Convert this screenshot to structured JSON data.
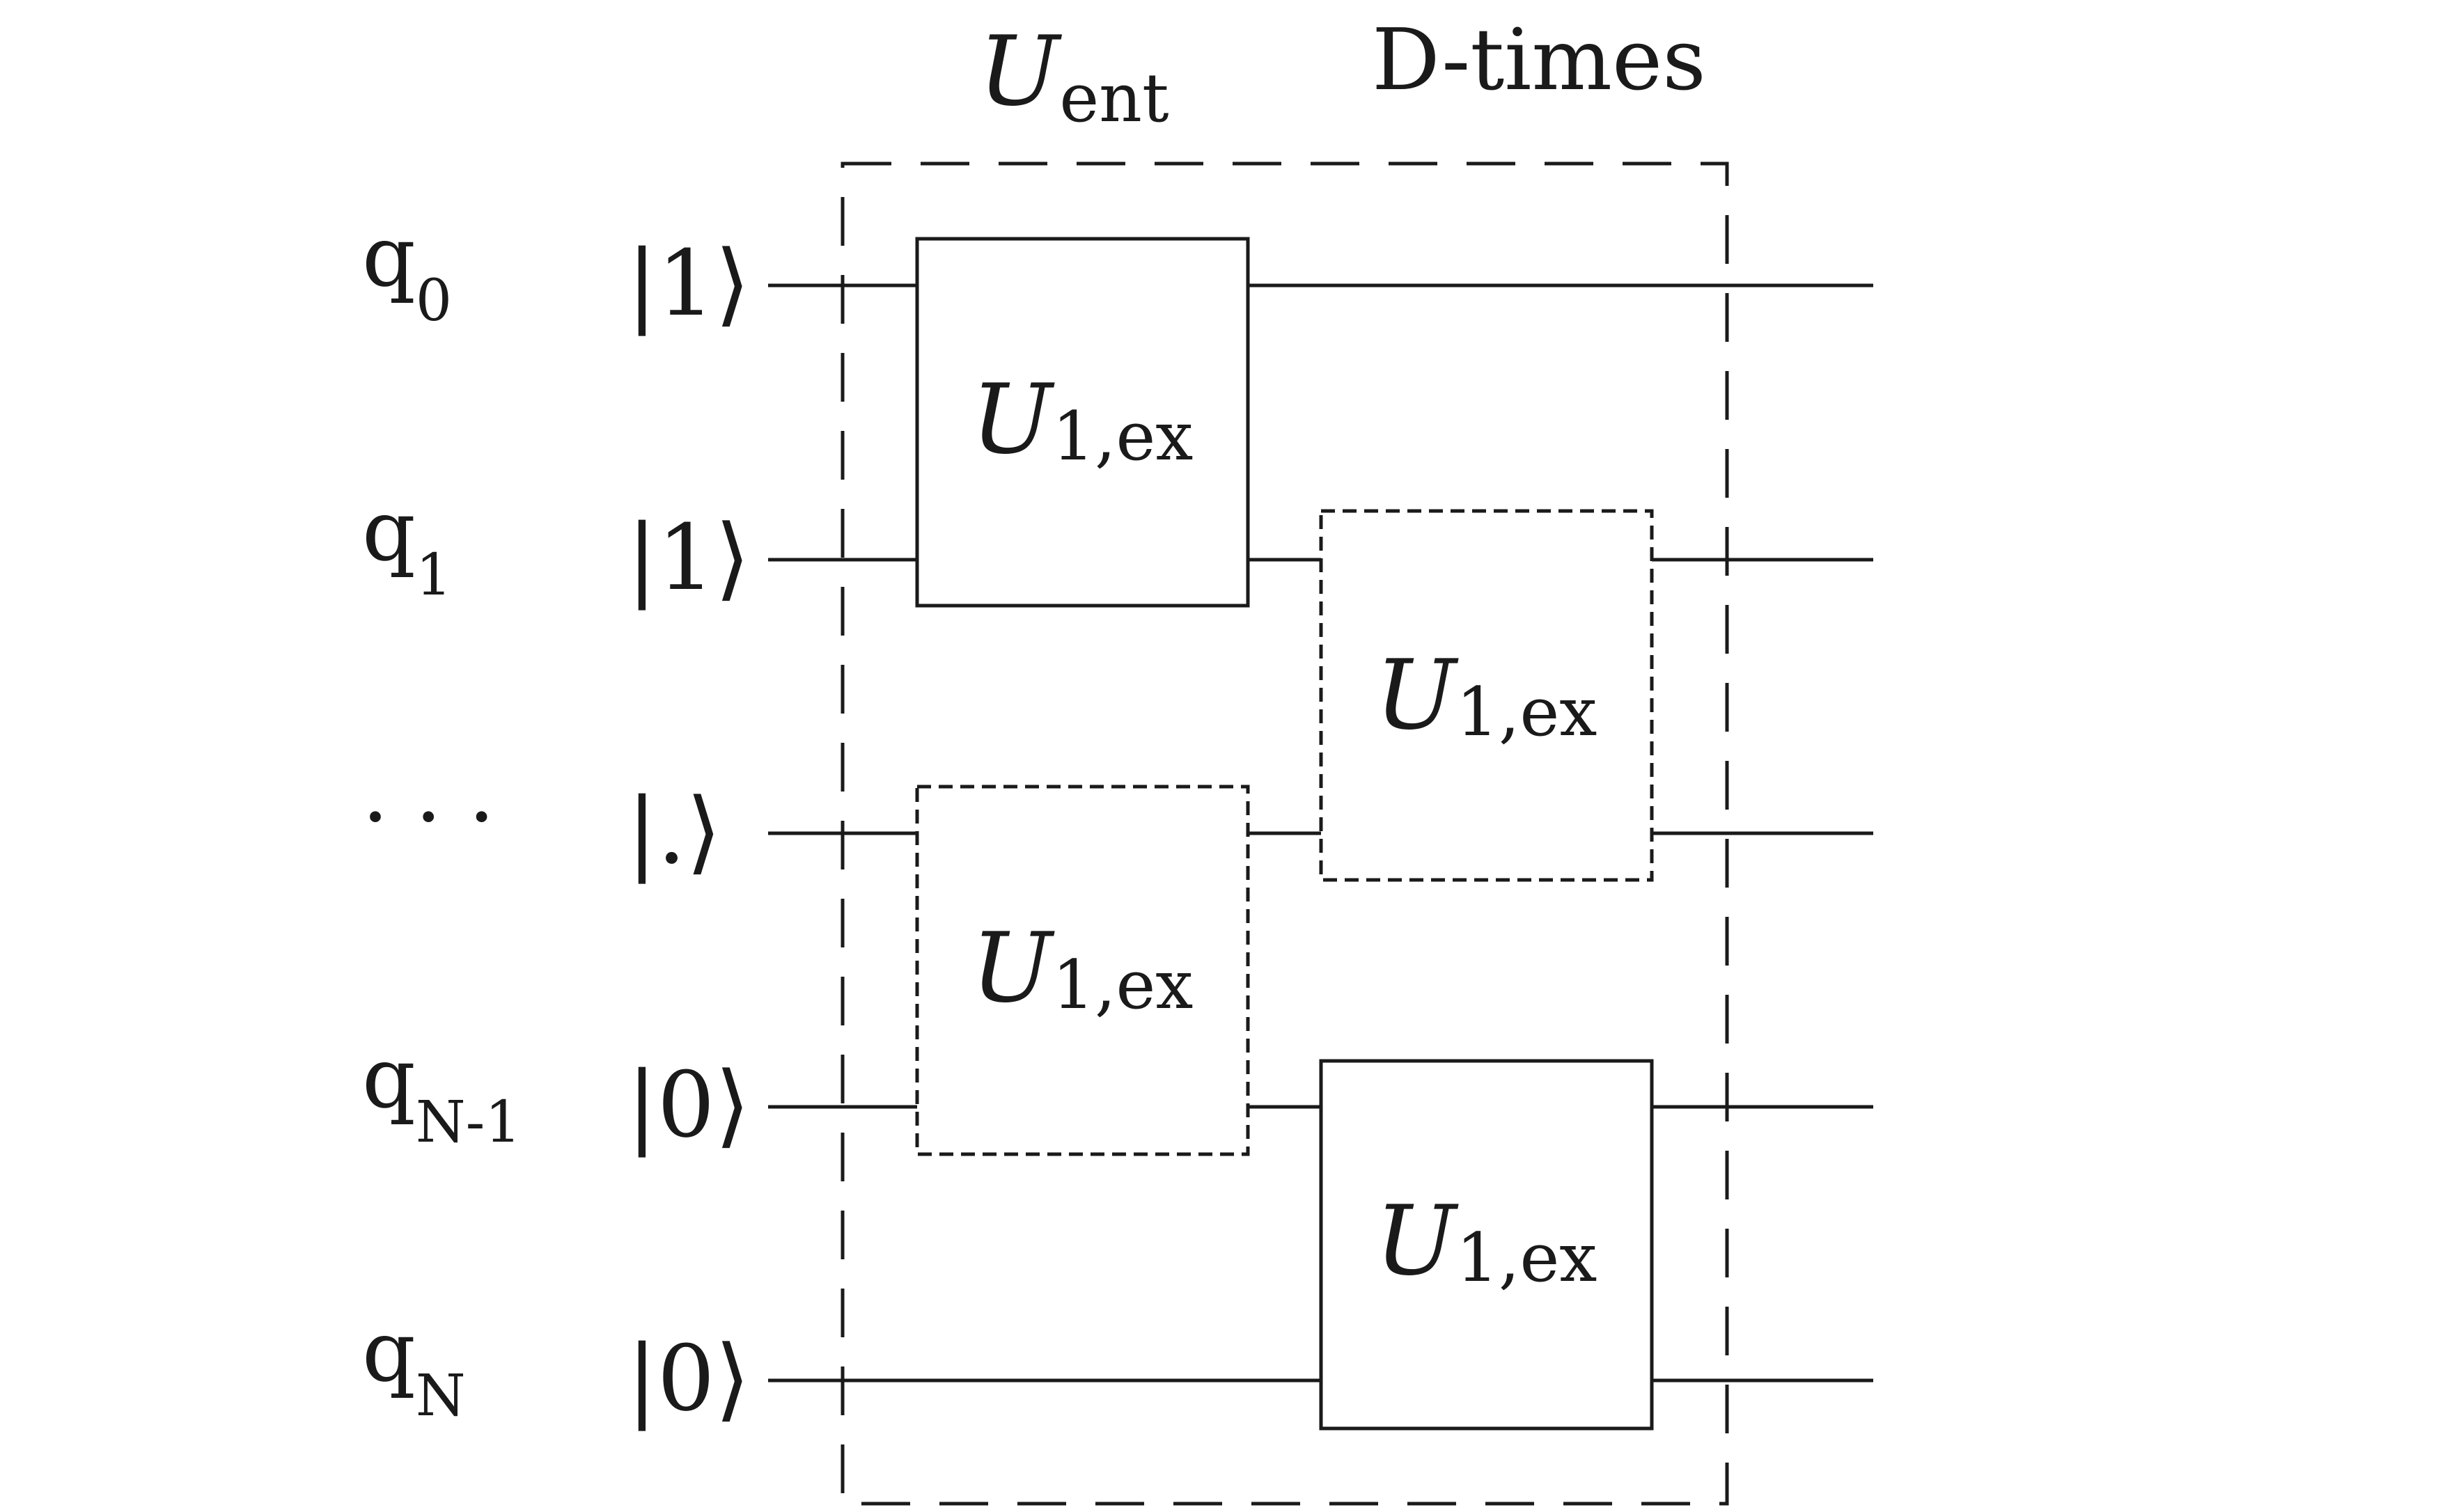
{
  "header": {
    "u_ent_main": "U",
    "u_ent_sub": "ent",
    "repeat_label": "D-times"
  },
  "qubits": [
    {
      "label": "q",
      "sub": "0",
      "ket": "|1⟩"
    },
    {
      "label": "q",
      "sub": "1",
      "ket": "|1⟩"
    },
    {
      "label": "· · ·",
      "sub": "",
      "ket": "|.⟩"
    },
    {
      "label": "q",
      "sub": "N-1",
      "ket": "|0⟩"
    },
    {
      "label": "q",
      "sub": "N",
      "ket": "|0⟩"
    }
  ],
  "gates": [
    {
      "main": "U",
      "sub": "1,ex",
      "style": "solid"
    },
    {
      "main": "U",
      "sub": "1,ex",
      "style": "dashed"
    },
    {
      "main": "U",
      "sub": "1,ex",
      "style": "dashed"
    },
    {
      "main": "U",
      "sub": "1,ex",
      "style": "solid"
    }
  ]
}
